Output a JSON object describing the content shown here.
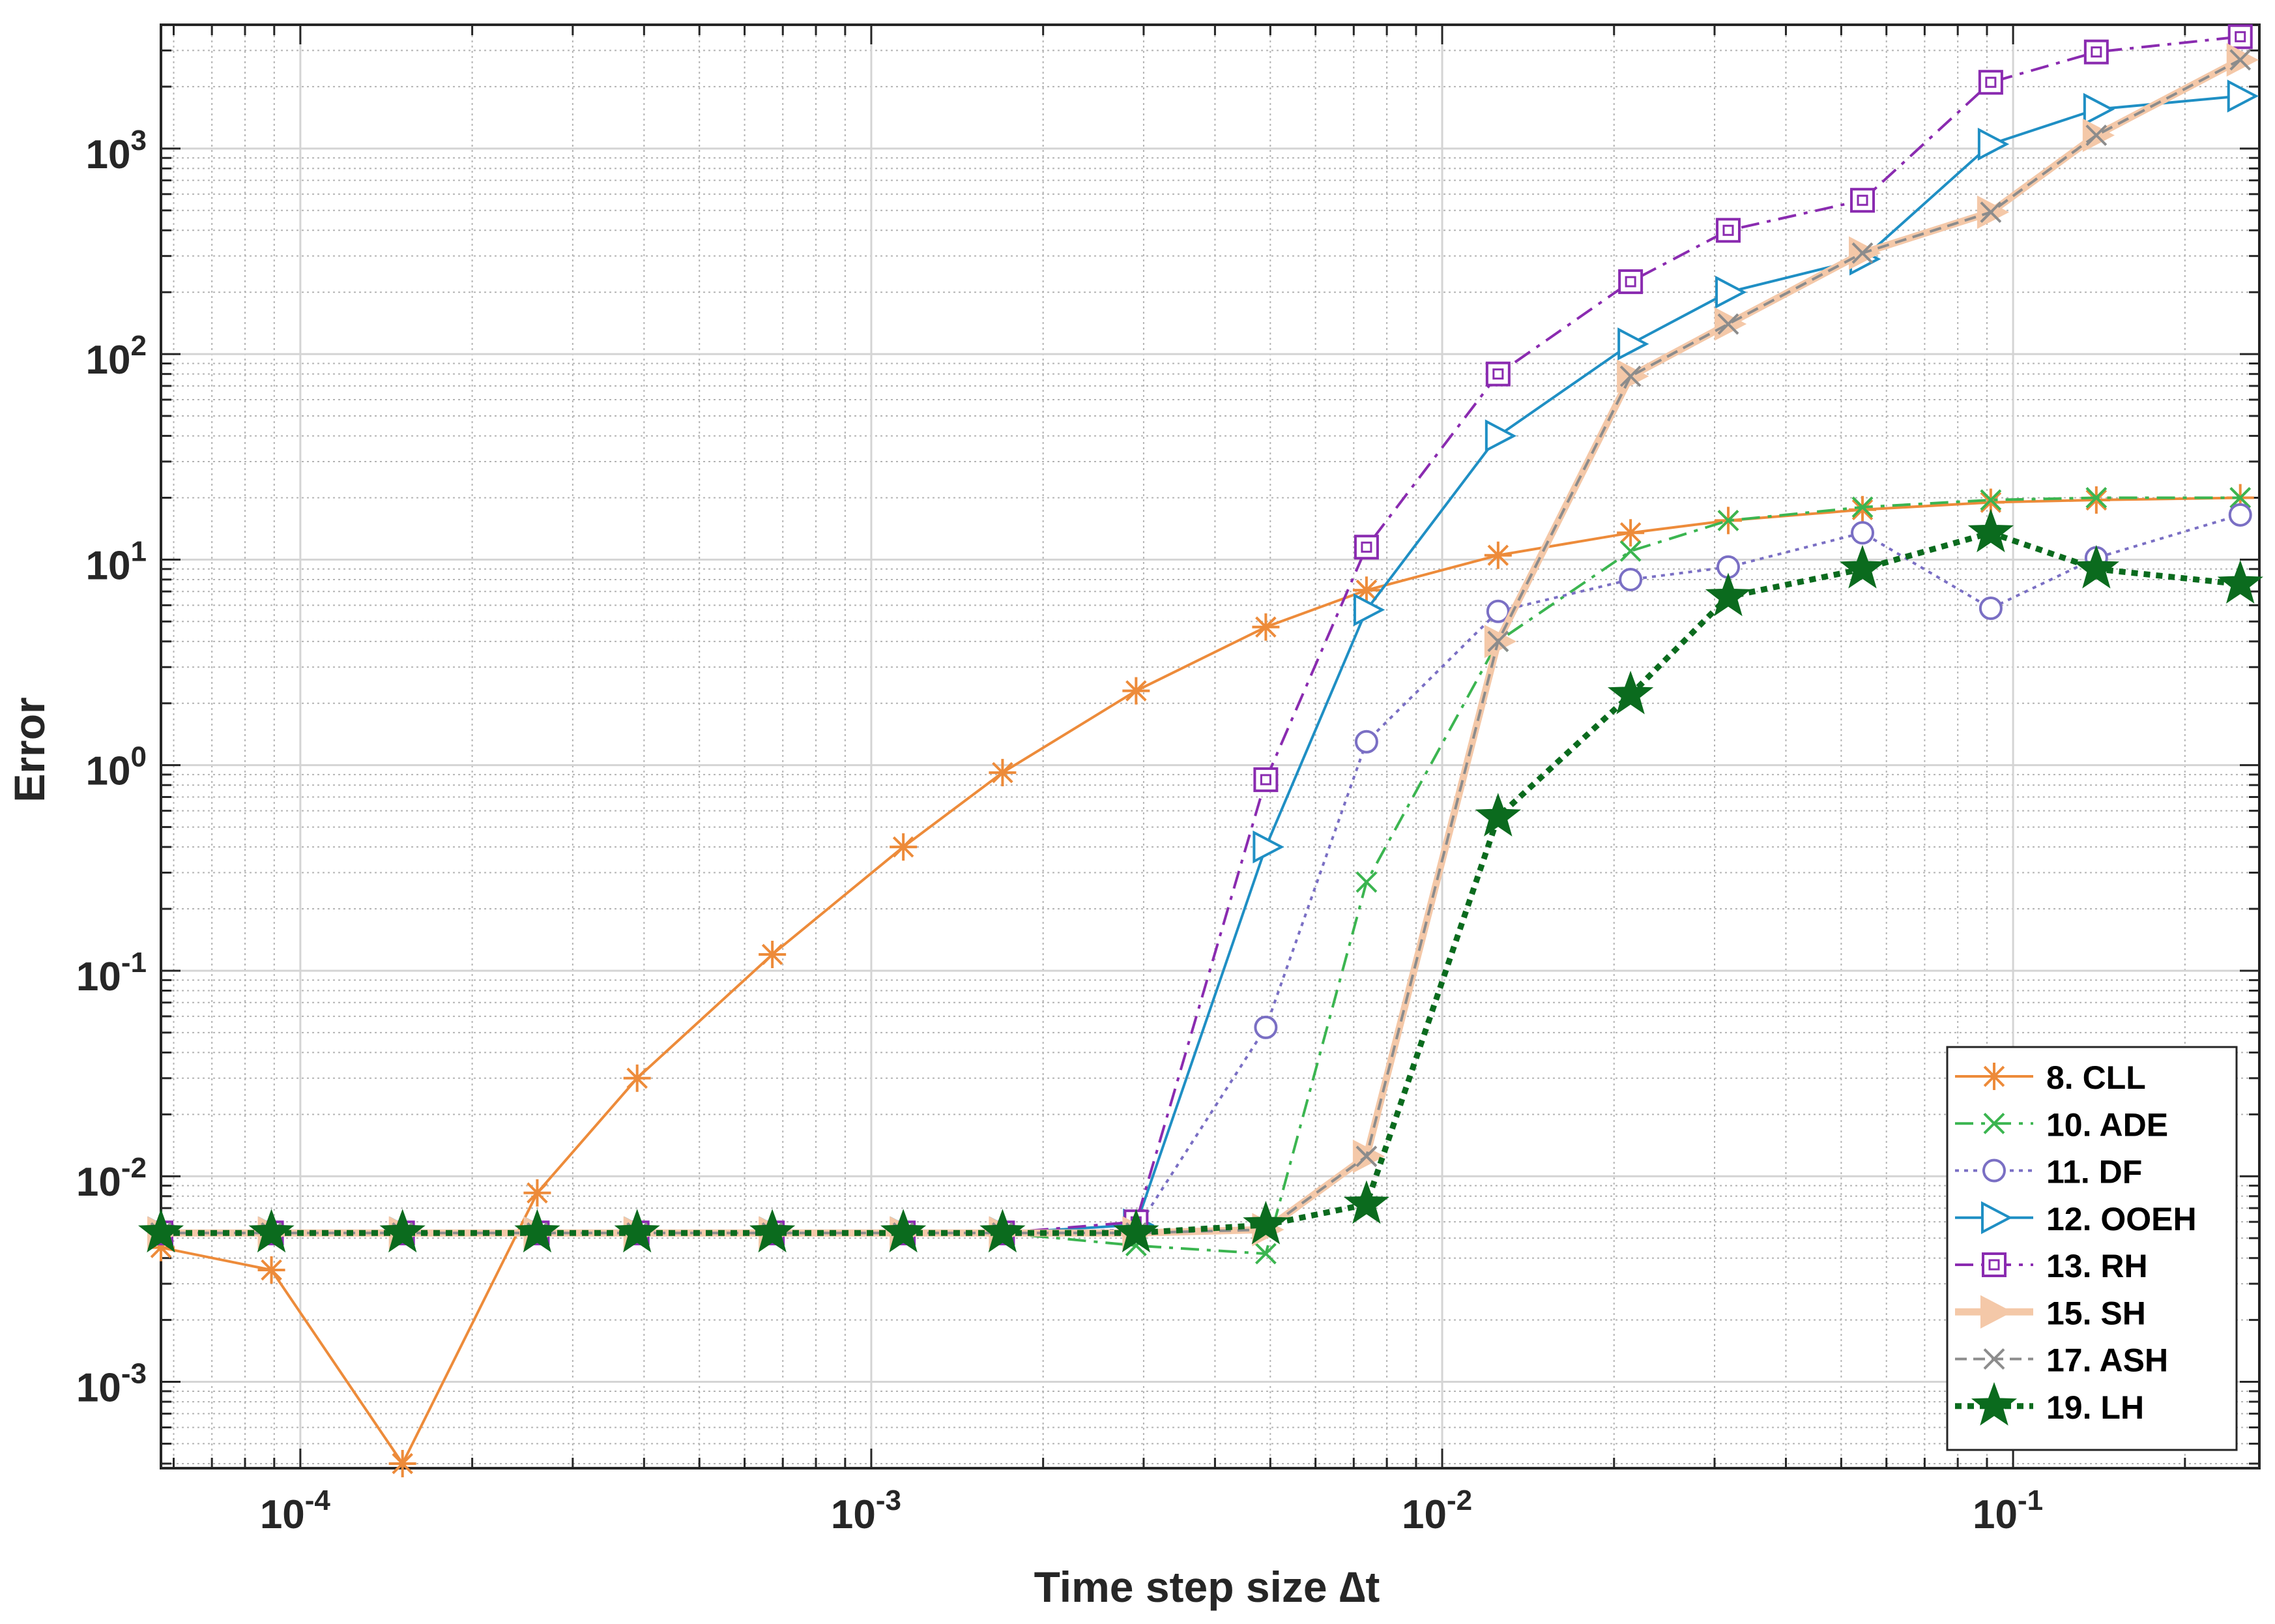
{
  "chart_data": {
    "type": "line",
    "title": "",
    "xlabel": "Time step size ∆t",
    "ylabel": "Error",
    "xscale": "log",
    "yscale": "log",
    "xlim": [
      5.7e-05,
      0.27
    ],
    "ylim": [
      0.00038,
      4000
    ],
    "grid": "on (major and minor)",
    "legend_position": "bottom-right",
    "x_ticks": [
      {
        "value": 0.0001,
        "base": "10",
        "exp": "-4"
      },
      {
        "value": 0.001,
        "base": "10",
        "exp": "-3"
      },
      {
        "value": 0.01,
        "base": "10",
        "exp": "-2"
      },
      {
        "value": 0.1,
        "base": "10",
        "exp": "-1"
      }
    ],
    "y_ticks": [
      {
        "value": 0.001,
        "base": "10",
        "exp": "-3"
      },
      {
        "value": 0.01,
        "base": "10",
        "exp": "-2"
      },
      {
        "value": 0.1,
        "base": "10",
        "exp": "-1"
      },
      {
        "value": 1,
        "base": "10",
        "exp": "0"
      },
      {
        "value": 10,
        "base": "10",
        "exp": "1"
      },
      {
        "value": 100,
        "base": "10",
        "exp": "2"
      },
      {
        "value": 1000,
        "base": "10",
        "exp": "3"
      }
    ],
    "x": [
      5.7e-05,
      8.9e-05,
      0.000151,
      0.00026,
      0.000389,
      0.000671,
      0.001138,
      0.001698,
      0.00291,
      0.00491,
      0.00737,
      0.01253,
      0.02138,
      0.0317,
      0.05448,
      0.0914,
      0.1399,
      0.25
    ],
    "series": [
      {
        "name": "8. CLL",
        "color": "#ED8B3A",
        "dash": "solid",
        "marker": "asterisk",
        "values": [
          0.0045,
          0.0035,
          0.0004,
          0.0083,
          0.03,
          0.12,
          0.4,
          0.92,
          2.3,
          4.7,
          7.1,
          10.5,
          13.5,
          15.5,
          17.5,
          19.0,
          19.5,
          20.0
        ]
      },
      {
        "name": "10. ADE",
        "color": "#3BB550",
        "dash": "dashdot",
        "marker": "x",
        "values": [
          0.0053,
          0.0053,
          0.0053,
          0.0053,
          0.0053,
          0.0053,
          0.0053,
          0.0053,
          0.0046,
          0.0042,
          0.27,
          4.0,
          11.0,
          15.5,
          18.0,
          19.5,
          20.0,
          20.0
        ]
      },
      {
        "name": "11. DF",
        "color": "#7A6FC4",
        "dash": "dotted",
        "marker": "circle",
        "values": [
          0.0053,
          0.0053,
          0.0053,
          0.0053,
          0.0053,
          0.0053,
          0.0053,
          0.0053,
          0.0055,
          0.053,
          1.3,
          5.6,
          8.0,
          9.2,
          13.5,
          5.8,
          10.2,
          16.5
        ]
      },
      {
        "name": "12. OOEH",
        "color": "#1F8FC4",
        "dash": "solid",
        "marker": "triangle-right",
        "values": [
          0.0053,
          0.0053,
          0.0053,
          0.0053,
          0.0053,
          0.0053,
          0.0053,
          0.0053,
          0.0058,
          0.4,
          5.7,
          40.0,
          112.0,
          200.0,
          290.0,
          1050.0,
          1550.0,
          1800.0
        ]
      },
      {
        "name": "13. RH",
        "color": "#8A2BB0",
        "dash": "dashdot",
        "marker": "square",
        "values": [
          0.0053,
          0.0053,
          0.0053,
          0.0053,
          0.0053,
          0.0053,
          0.0053,
          0.0053,
          0.006,
          0.85,
          11.5,
          80.0,
          225.0,
          400.0,
          560.0,
          2100.0,
          2950.0,
          3500.0
        ]
      },
      {
        "name": "15. SH",
        "color": "#F4C8A8",
        "dash": "solid",
        "marker": "triangle-right-filled",
        "values": [
          0.0053,
          0.0053,
          0.0053,
          0.0053,
          0.0053,
          0.0053,
          0.0053,
          0.0053,
          0.0053,
          0.0055,
          0.0125,
          4.0,
          78.0,
          140.0,
          310.0,
          490.0,
          1160.0,
          2700.0
        ]
      },
      {
        "name": "17. ASH",
        "color": "#8C8C8C",
        "dash": "dashed",
        "marker": "x",
        "values": [
          0.0053,
          0.0053,
          0.0053,
          0.0053,
          0.0053,
          0.0053,
          0.0053,
          0.0053,
          0.0053,
          0.0055,
          0.0125,
          4.0,
          78.0,
          140.0,
          310.0,
          490.0,
          1160.0,
          2700.0
        ]
      },
      {
        "name": "19. LH",
        "color": "#0B6B1E",
        "dash": "dotted",
        "marker": "star",
        "values": [
          0.0053,
          0.0053,
          0.0053,
          0.0053,
          0.0053,
          0.0053,
          0.0053,
          0.0053,
          0.0053,
          0.0058,
          0.0073,
          0.56,
          2.2,
          6.6,
          9.0,
          13.5,
          9.0,
          7.6
        ]
      }
    ]
  }
}
